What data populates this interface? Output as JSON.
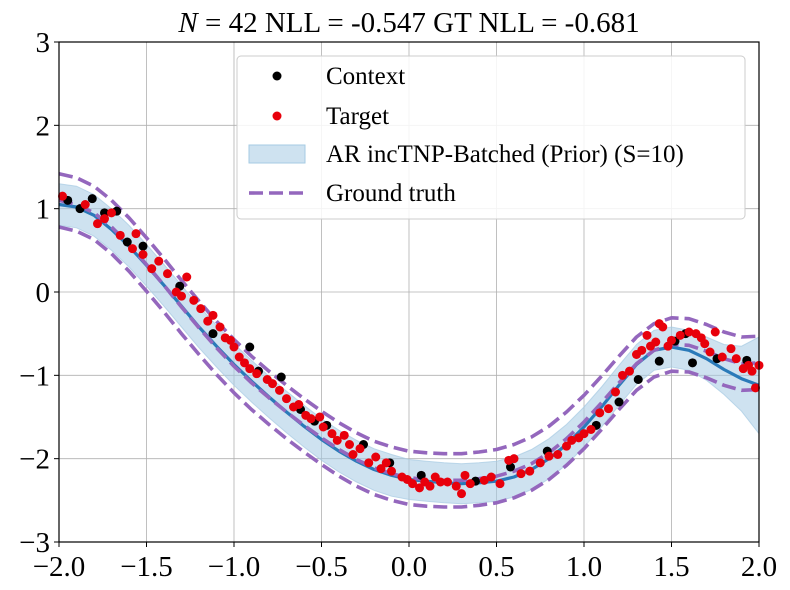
{
  "chart_data": {
    "type": "scatter",
    "title_n": "N",
    "title_rest": " = 42 NLL = -0.547 GT NLL = -0.681",
    "xlim": [
      -2.0,
      2.0
    ],
    "ylim": [
      -3,
      3
    ],
    "x_ticks": [
      -2.0,
      -1.5,
      -1.0,
      -0.5,
      0.0,
      0.5,
      1.0,
      1.5,
      2.0
    ],
    "x_tick_labels": [
      "−2.0",
      "−1.5",
      "−1.0",
      "−0.5",
      "0.0",
      "0.5",
      "1.0",
      "1.5",
      "2.0"
    ],
    "y_ticks": [
      -3,
      -2,
      -1,
      0,
      1,
      2,
      3
    ],
    "y_tick_labels": [
      "−3",
      "−2",
      "−1",
      "0",
      "1",
      "2",
      "3"
    ],
    "grid": true,
    "legend_position": "top-right",
    "legend": [
      "Context",
      "Target",
      "AR incTNP-Batched (Prior) (S=10)",
      "Ground truth"
    ],
    "colors": {
      "context": "#000000",
      "target": "#e8000b",
      "band": "#a6cbe3",
      "mean": "#2a7ab9",
      "ground_truth": "#9467bd",
      "grid": "#b0b0b0"
    },
    "x": [
      -2.0,
      -1.9,
      -1.8,
      -1.7,
      -1.6,
      -1.5,
      -1.4,
      -1.3,
      -1.2,
      -1.1,
      -1.0,
      -0.9,
      -0.8,
      -0.7,
      -0.6,
      -0.5,
      -0.4,
      -0.3,
      -0.2,
      -0.1,
      0.0,
      0.1,
      0.2,
      0.3,
      0.4,
      0.5,
      0.6,
      0.7,
      0.8,
      0.9,
      1.0,
      1.1,
      1.2,
      1.3,
      1.4,
      1.5,
      1.6,
      1.7,
      1.8,
      1.9,
      2.0
    ],
    "series": [
      {
        "name": "AR incTNP-Batched (Prior) (S=10)",
        "mean": [
          1.05,
          1.02,
          0.92,
          0.75,
          0.55,
          0.32,
          0.08,
          -0.17,
          -0.42,
          -0.65,
          -0.87,
          -1.07,
          -1.26,
          -1.44,
          -1.61,
          -1.77,
          -1.91,
          -2.03,
          -2.13,
          -2.2,
          -2.25,
          -2.27,
          -2.29,
          -2.3,
          -2.29,
          -2.27,
          -2.22,
          -2.13,
          -2.0,
          -1.83,
          -1.62,
          -1.38,
          -1.12,
          -0.87,
          -0.7,
          -0.66,
          -0.7,
          -0.8,
          -0.93,
          -1.04,
          -1.12
        ],
        "lower": [
          0.8,
          0.77,
          0.67,
          0.5,
          0.3,
          0.07,
          -0.17,
          -0.42,
          -0.67,
          -0.9,
          -1.12,
          -1.32,
          -1.51,
          -1.69,
          -1.86,
          -2.02,
          -2.16,
          -2.28,
          -2.38,
          -2.45,
          -2.49,
          -2.51,
          -2.53,
          -2.54,
          -2.53,
          -2.51,
          -2.46,
          -2.37,
          -2.24,
          -2.07,
          -1.86,
          -1.62,
          -1.36,
          -1.11,
          -0.94,
          -0.9,
          -0.94,
          -1.06,
          -1.23,
          -1.43,
          -1.7
        ],
        "upper": [
          1.3,
          1.27,
          1.17,
          1.0,
          0.8,
          0.57,
          0.33,
          0.08,
          -0.17,
          -0.4,
          -0.62,
          -0.82,
          -1.01,
          -1.19,
          -1.36,
          -1.52,
          -1.66,
          -1.78,
          -1.88,
          -1.95,
          -2.01,
          -2.03,
          -2.05,
          -2.06,
          -2.05,
          -2.03,
          -1.98,
          -1.89,
          -1.76,
          -1.59,
          -1.38,
          -1.14,
          -0.88,
          -0.63,
          -0.46,
          -0.42,
          -0.46,
          -0.54,
          -0.63,
          -0.65,
          -0.54
        ]
      },
      {
        "name": "Ground truth",
        "mean": [
          1.1,
          1.05,
          0.95,
          0.78,
          0.57,
          0.33,
          0.08,
          -0.18,
          -0.43,
          -0.67,
          -0.89,
          -1.09,
          -1.27,
          -1.44,
          -1.6,
          -1.75,
          -1.89,
          -2.01,
          -2.11,
          -2.18,
          -2.23,
          -2.25,
          -2.26,
          -2.26,
          -2.24,
          -2.21,
          -2.15,
          -2.06,
          -1.93,
          -1.76,
          -1.56,
          -1.33,
          -1.09,
          -0.86,
          -0.7,
          -0.63,
          -0.64,
          -0.71,
          -0.8,
          -0.86,
          -0.85
        ],
        "lower": [
          0.78,
          0.73,
          0.63,
          0.46,
          0.25,
          0.01,
          -0.24,
          -0.5,
          -0.75,
          -0.99,
          -1.21,
          -1.41,
          -1.59,
          -1.76,
          -1.92,
          -2.07,
          -2.21,
          -2.33,
          -2.43,
          -2.5,
          -2.55,
          -2.57,
          -2.58,
          -2.58,
          -2.56,
          -2.53,
          -2.47,
          -2.38,
          -2.25,
          -2.08,
          -1.88,
          -1.65,
          -1.41,
          -1.18,
          -1.02,
          -0.95,
          -0.96,
          -1.03,
          -1.12,
          -1.18,
          -1.17
        ],
        "upper": [
          1.42,
          1.37,
          1.27,
          1.1,
          0.89,
          0.65,
          0.4,
          0.14,
          -0.11,
          -0.35,
          -0.57,
          -0.77,
          -0.95,
          -1.12,
          -1.28,
          -1.43,
          -1.57,
          -1.69,
          -1.79,
          -1.86,
          -1.91,
          -1.93,
          -1.94,
          -1.94,
          -1.92,
          -1.89,
          -1.83,
          -1.74,
          -1.61,
          -1.44,
          -1.24,
          -1.01,
          -0.77,
          -0.54,
          -0.38,
          -0.31,
          -0.32,
          -0.39,
          -0.48,
          -0.54,
          -0.53
        ]
      }
    ],
    "context_points": [
      [
        -1.95,
        1.1
      ],
      [
        -1.88,
        1.0
      ],
      [
        -1.81,
        1.12
      ],
      [
        -1.74,
        0.95
      ],
      [
        -1.67,
        0.97
      ],
      [
        -1.61,
        0.6
      ],
      [
        -1.52,
        0.55
      ],
      [
        -1.31,
        0.07
      ],
      [
        -1.12,
        -0.5
      ],
      [
        -0.91,
        -0.66
      ],
      [
        -0.86,
        -0.95
      ],
      [
        -0.73,
        -1.02
      ],
      [
        -0.62,
        -1.41
      ],
      [
        -0.54,
        -1.55
      ],
      [
        -0.47,
        -1.6
      ],
      [
        -0.26,
        -1.83
      ],
      [
        -0.11,
        -2.05
      ],
      [
        0.07,
        -2.2
      ],
      [
        0.38,
        -2.27
      ],
      [
        0.58,
        -2.1
      ],
      [
        0.79,
        -1.91
      ],
      [
        1.07,
        -1.6
      ],
      [
        1.2,
        -1.32
      ],
      [
        1.31,
        -1.05
      ],
      [
        1.43,
        -0.83
      ],
      [
        1.52,
        -0.59
      ],
      [
        1.58,
        -0.5
      ],
      [
        1.62,
        -0.85
      ],
      [
        1.76,
        -0.8
      ],
      [
        1.93,
        -0.82
      ]
    ],
    "target_points": [
      [
        -1.98,
        1.15
      ],
      [
        -1.85,
        1.05
      ],
      [
        -1.78,
        0.82
      ],
      [
        -1.74,
        0.88
      ],
      [
        -1.7,
        0.95
      ],
      [
        -1.65,
        0.68
      ],
      [
        -1.58,
        0.52
      ],
      [
        -1.56,
        0.7
      ],
      [
        -1.52,
        0.45
      ],
      [
        -1.47,
        0.28
      ],
      [
        -1.43,
        0.37
      ],
      [
        -1.38,
        0.22
      ],
      [
        -1.33,
        0.0
      ],
      [
        -1.3,
        -0.05
      ],
      [
        -1.27,
        0.18
      ],
      [
        -1.23,
        -0.1
      ],
      [
        -1.19,
        -0.2
      ],
      [
        -1.15,
        -0.35
      ],
      [
        -1.12,
        -0.28
      ],
      [
        -1.08,
        -0.42
      ],
      [
        -1.05,
        -0.55
      ],
      [
        -1.02,
        -0.58
      ],
      [
        -1.0,
        -0.66
      ],
      [
        -0.97,
        -0.78
      ],
      [
        -0.94,
        -0.85
      ],
      [
        -0.91,
        -0.92
      ],
      [
        -0.87,
        -0.98
      ],
      [
        -0.81,
        -1.05
      ],
      [
        -0.78,
        -1.1
      ],
      [
        -0.74,
        -1.18
      ],
      [
        -0.7,
        -1.28
      ],
      [
        -0.66,
        -1.38
      ],
      [
        -0.63,
        -1.35
      ],
      [
        -0.59,
        -1.48
      ],
      [
        -0.56,
        -1.52
      ],
      [
        -0.51,
        -1.5
      ],
      [
        -0.49,
        -1.62
      ],
      [
        -0.44,
        -1.7
      ],
      [
        -0.41,
        -1.78
      ],
      [
        -0.37,
        -1.72
      ],
      [
        -0.34,
        -1.83
      ],
      [
        -0.32,
        -1.95
      ],
      [
        -0.28,
        -1.88
      ],
      [
        -0.23,
        -2.05
      ],
      [
        -0.19,
        -1.98
      ],
      [
        -0.16,
        -2.12
      ],
      [
        -0.13,
        -2.05
      ],
      [
        -0.1,
        -2.15
      ],
      [
        -0.04,
        -2.22
      ],
      [
        -0.01,
        -2.25
      ],
      [
        0.02,
        -2.3
      ],
      [
        0.06,
        -2.35
      ],
      [
        0.09,
        -2.28
      ],
      [
        0.12,
        -2.33
      ],
      [
        0.15,
        -2.22
      ],
      [
        0.18,
        -2.28
      ],
      [
        0.22,
        -2.28
      ],
      [
        0.27,
        -2.33
      ],
      [
        0.3,
        -2.42
      ],
      [
        0.32,
        -2.2
      ],
      [
        0.35,
        -2.3
      ],
      [
        0.43,
        -2.26
      ],
      [
        0.47,
        -2.22
      ],
      [
        0.52,
        -2.3
      ],
      [
        0.57,
        -2.02
      ],
      [
        0.6,
        -2.0
      ],
      [
        0.64,
        -2.18
      ],
      [
        0.69,
        -2.15
      ],
      [
        0.75,
        -2.05
      ],
      [
        0.8,
        -1.97
      ],
      [
        0.85,
        -1.95
      ],
      [
        0.9,
        -1.85
      ],
      [
        0.93,
        -1.78
      ],
      [
        0.97,
        -1.75
      ],
      [
        1.0,
        -1.7
      ],
      [
        1.04,
        -1.65
      ],
      [
        1.09,
        -1.45
      ],
      [
        1.14,
        -1.4
      ],
      [
        1.18,
        -1.2
      ],
      [
        1.22,
        -1.0
      ],
      [
        1.26,
        -0.95
      ],
      [
        1.3,
        -0.75
      ],
      [
        1.33,
        -0.7
      ],
      [
        1.36,
        -0.52
      ],
      [
        1.38,
        -0.65
      ],
      [
        1.41,
        -0.6
      ],
      [
        1.43,
        -0.38
      ],
      [
        1.45,
        -0.42
      ],
      [
        1.48,
        -0.65
      ],
      [
        1.5,
        -0.58
      ],
      [
        1.55,
        -0.52
      ],
      [
        1.6,
        -0.48
      ],
      [
        1.64,
        -0.5
      ],
      [
        1.67,
        -0.55
      ],
      [
        1.69,
        -0.62
      ],
      [
        1.72,
        -0.72
      ],
      [
        1.75,
        -0.48
      ],
      [
        1.79,
        -0.78
      ],
      [
        1.84,
        -0.68
      ],
      [
        1.87,
        -0.8
      ],
      [
        1.91,
        -0.92
      ],
      [
        1.94,
        -0.88
      ],
      [
        1.96,
        -0.95
      ],
      [
        1.98,
        -1.15
      ],
      [
        2.0,
        -0.88
      ]
    ]
  }
}
